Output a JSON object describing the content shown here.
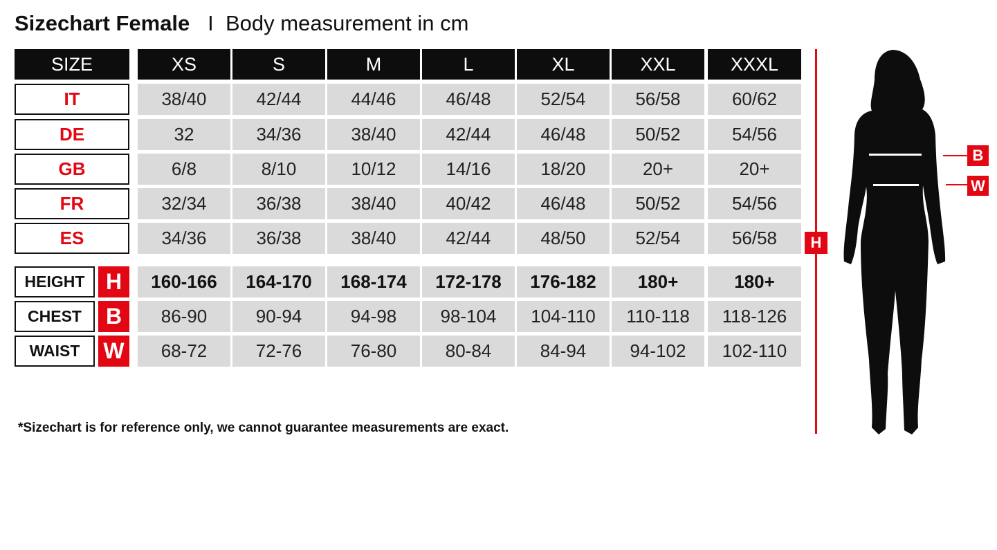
{
  "title": {
    "main": "Sizechart Female",
    "separator": "I",
    "sub": "Body measurement in cm"
  },
  "table": {
    "corner": "SIZE",
    "sizes": [
      "XS",
      "S",
      "M",
      "L",
      "XL",
      "XXL",
      "XXXL"
    ],
    "systems": [
      {
        "label": "IT",
        "values": [
          "38/40",
          "42/44",
          "44/46",
          "46/48",
          "52/54",
          "56/58",
          "60/62"
        ]
      },
      {
        "label": "DE",
        "values": [
          "32",
          "34/36",
          "38/40",
          "42/44",
          "46/48",
          "50/52",
          "54/56"
        ]
      },
      {
        "label": "GB",
        "values": [
          "6/8",
          "8/10",
          "10/12",
          "14/16",
          "18/20",
          "20+",
          "20+"
        ]
      },
      {
        "label": "FR",
        "values": [
          "32/34",
          "36/38",
          "38/40",
          "40/42",
          "46/48",
          "50/52",
          "54/56"
        ]
      },
      {
        "label": "ES",
        "values": [
          "34/36",
          "36/38",
          "38/40",
          "42/44",
          "48/50",
          "52/54",
          "56/58"
        ]
      }
    ],
    "measurements": [
      {
        "label": "HEIGHT",
        "badge": "H",
        "values": [
          "160-166",
          "164-170",
          "168-174",
          "172-178",
          "176-182",
          "180+",
          "180+"
        ]
      },
      {
        "label": "CHEST",
        "badge": "B",
        "values": [
          "86-90",
          "90-94",
          "94-98",
          "98-104",
          "104-110",
          "110-118",
          "118-126"
        ]
      },
      {
        "label": "WAIST",
        "badge": "W",
        "values": [
          "68-72",
          "72-76",
          "76-80",
          "80-84",
          "84-94",
          "94-102",
          "102-110"
        ]
      }
    ]
  },
  "figure": {
    "height_label": "H",
    "chest_label": "B",
    "waist_label": "W"
  },
  "note": "*Sizechart is for reference only, we cannot guarantee measurements are exact.",
  "colors": {
    "accent": "#e30613",
    "header": "#0d0d0d",
    "cell": "#dadada"
  }
}
